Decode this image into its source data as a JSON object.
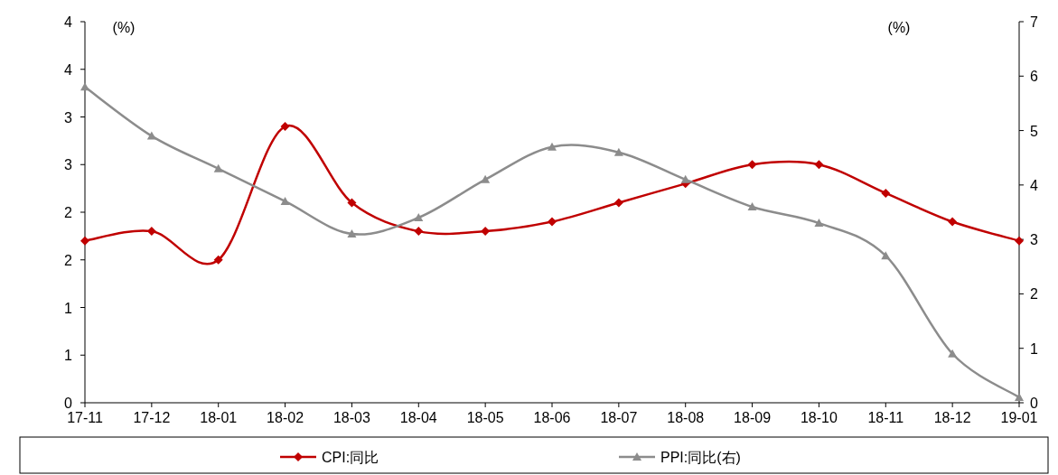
{
  "chart_data": {
    "type": "line",
    "ylabel": "(%)",
    "y2label": "(%)",
    "categories": [
      "17-11",
      "17-12",
      "18-01",
      "18-02",
      "18-03",
      "18-04",
      "18-05",
      "18-06",
      "18-07",
      "18-08",
      "18-09",
      "18-10",
      "18-11",
      "18-12",
      "19-01"
    ],
    "ylim": [
      0,
      4
    ],
    "yticks": [
      0,
      {
        "value": 0.5,
        "label": "1"
      },
      1,
      {
        "value": 1.5,
        "label": "2"
      },
      2,
      {
        "value": 2.5,
        "label": "3"
      },
      3,
      {
        "value": 3.5,
        "label": "4"
      },
      4
    ],
    "y2lim": [
      0,
      7
    ],
    "y2ticks": [
      0,
      1,
      2,
      3,
      4,
      5,
      6,
      7
    ],
    "legend": "bottom",
    "grid": false,
    "line_style": "solid",
    "series": [
      {
        "name": "CPI:同比",
        "color": "#c00000",
        "marker": "diamond",
        "values": [
          1.7,
          1.8,
          1.5,
          2.9,
          2.1,
          1.8,
          1.8,
          1.9,
          2.1,
          2.3,
          2.5,
          2.5,
          2.2,
          1.9,
          1.7
        ]
      },
      {
        "name": "PPI:同比(右)",
        "color": "#8c8c8c",
        "marker": "triangle",
        "axis": "y2",
        "values": [
          5.8,
          4.9,
          4.3,
          3.7,
          3.1,
          3.4,
          4.1,
          4.7,
          4.6,
          4.1,
          3.6,
          3.3,
          2.7,
          0.9,
          0.1
        ]
      }
    ]
  }
}
